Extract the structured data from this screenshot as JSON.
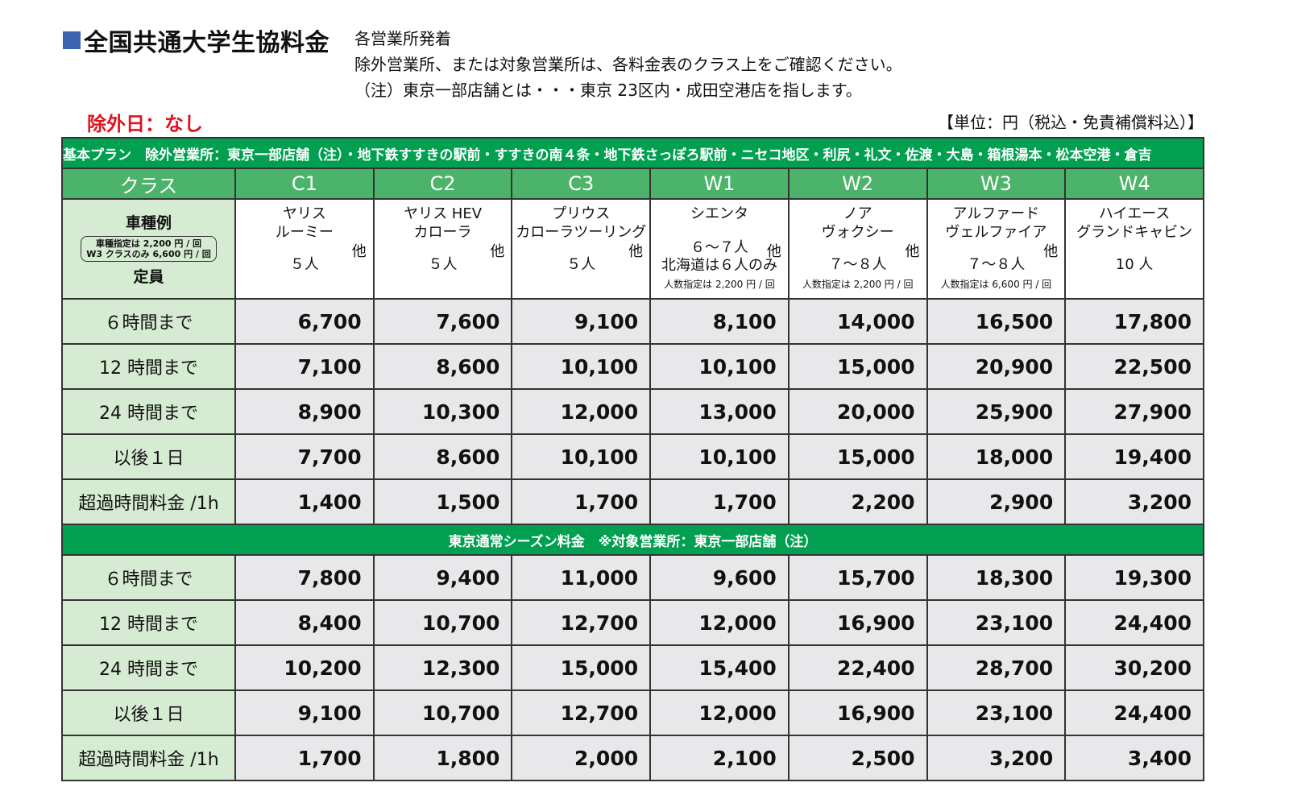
{
  "header": {
    "title": "全国共通大学生協料金",
    "notes": [
      "各営業所発着",
      "除外営業所、または対象営業所は、各料金表のクラス上をご確認ください。",
      "（注）東京一部店舗とは・・・東京 23区内・成田空港店を指します。"
    ],
    "exclusion_days": "除外日：なし",
    "unit": "【単位：円（税込・免責補償料込）】"
  },
  "colors": {
    "band": "#00a050",
    "class_header": "#4cb46a",
    "label_bg": "#d6ecd2",
    "price_bg": "#e8e8ea",
    "accent_red": "#e0141e",
    "title_square": "#3a64b0"
  },
  "basic": {
    "band_label": "基本プラン　除外営業所：東京一部店舗（注）・地下鉄すすきの駅前・すすきの南４条・地下鉄さっぽろ駅前・ニセコ地区・利尻・礼文・佐渡・大島・箱根湯本・松本空港・倉吉",
    "class_header": "クラス",
    "classes": [
      "C1",
      "C2",
      "C3",
      "W1",
      "W2",
      "W3",
      "W4"
    ],
    "model_label": {
      "title": "車種例",
      "box_line1": "車種指定は 2,200 円 / 回",
      "box_line2": "W3 クラスのみ 6,600 円 / 回",
      "capacity": "定員"
    },
    "models": [
      {
        "line1": "ヤリス",
        "line2": "ルーミー",
        "hoka": "他",
        "capacity": "５人",
        "note": "",
        "extra": ""
      },
      {
        "line1": "ヤリス HEV",
        "line2": "カローラ",
        "hoka": "他",
        "capacity": "５人",
        "note": "",
        "extra": ""
      },
      {
        "line1": "プリウス",
        "line2": "カローラツーリング",
        "hoka": "他",
        "capacity": "５人",
        "note": "",
        "extra": ""
      },
      {
        "line1": "シエンタ",
        "line2": "",
        "hoka": "他",
        "capacity": "６～７人",
        "extra": "北海道は６人のみ",
        "note": "人数指定は 2,200 円 / 回"
      },
      {
        "line1": "ノア",
        "line2": "ヴォクシー",
        "hoka": "他",
        "capacity": "７～８人",
        "note": "人数指定は 2,200 円 / 回",
        "extra": ""
      },
      {
        "line1": "アルファード",
        "line2": "ヴェルファイア",
        "hoka": "他",
        "capacity": "７～８人",
        "note": "人数指定は 6,600 円 / 回",
        "extra": ""
      },
      {
        "line1": "ハイエース",
        "line2": "グランドキャビン",
        "hoka": "",
        "capacity": "10 人",
        "note": "",
        "extra": ""
      }
    ],
    "rows": [
      {
        "label": "６時間まで",
        "values": [
          "6,700",
          "7,600",
          "9,100",
          "8,100",
          "14,000",
          "16,500",
          "17,800"
        ]
      },
      {
        "label": "12 時間まで",
        "values": [
          "7,100",
          "8,600",
          "10,100",
          "10,100",
          "15,000",
          "20,900",
          "22,500"
        ]
      },
      {
        "label": "24 時間まで",
        "values": [
          "8,900",
          "10,300",
          "12,000",
          "13,000",
          "20,000",
          "25,900",
          "27,900"
        ]
      },
      {
        "label": "以後１日",
        "values": [
          "7,700",
          "8,600",
          "10,100",
          "10,100",
          "15,000",
          "18,000",
          "19,400"
        ]
      },
      {
        "label": "超過時間料金 /1h",
        "values": [
          "1,400",
          "1,500",
          "1,700",
          "1,700",
          "2,200",
          "2,900",
          "3,200"
        ]
      }
    ]
  },
  "tokyo": {
    "band_label": "東京通常シーズン料金　※対象営業所：東京一部店舗（注）",
    "rows": [
      {
        "label": "６時間まで",
        "values": [
          "7,800",
          "9,400",
          "11,000",
          "9,600",
          "15,700",
          "18,300",
          "19,300"
        ]
      },
      {
        "label": "12 時間まで",
        "values": [
          "8,400",
          "10,700",
          "12,700",
          "12,000",
          "16,900",
          "23,100",
          "24,400"
        ]
      },
      {
        "label": "24 時間まで",
        "values": [
          "10,200",
          "12,300",
          "15,000",
          "15,400",
          "22,400",
          "28,700",
          "30,200"
        ]
      },
      {
        "label": "以後１日",
        "values": [
          "9,100",
          "10,700",
          "12,700",
          "12,000",
          "16,900",
          "23,100",
          "24,400"
        ]
      },
      {
        "label": "超過時間料金 /1h",
        "values": [
          "1,700",
          "1,800",
          "2,000",
          "2,100",
          "2,500",
          "3,200",
          "3,400"
        ]
      }
    ]
  }
}
